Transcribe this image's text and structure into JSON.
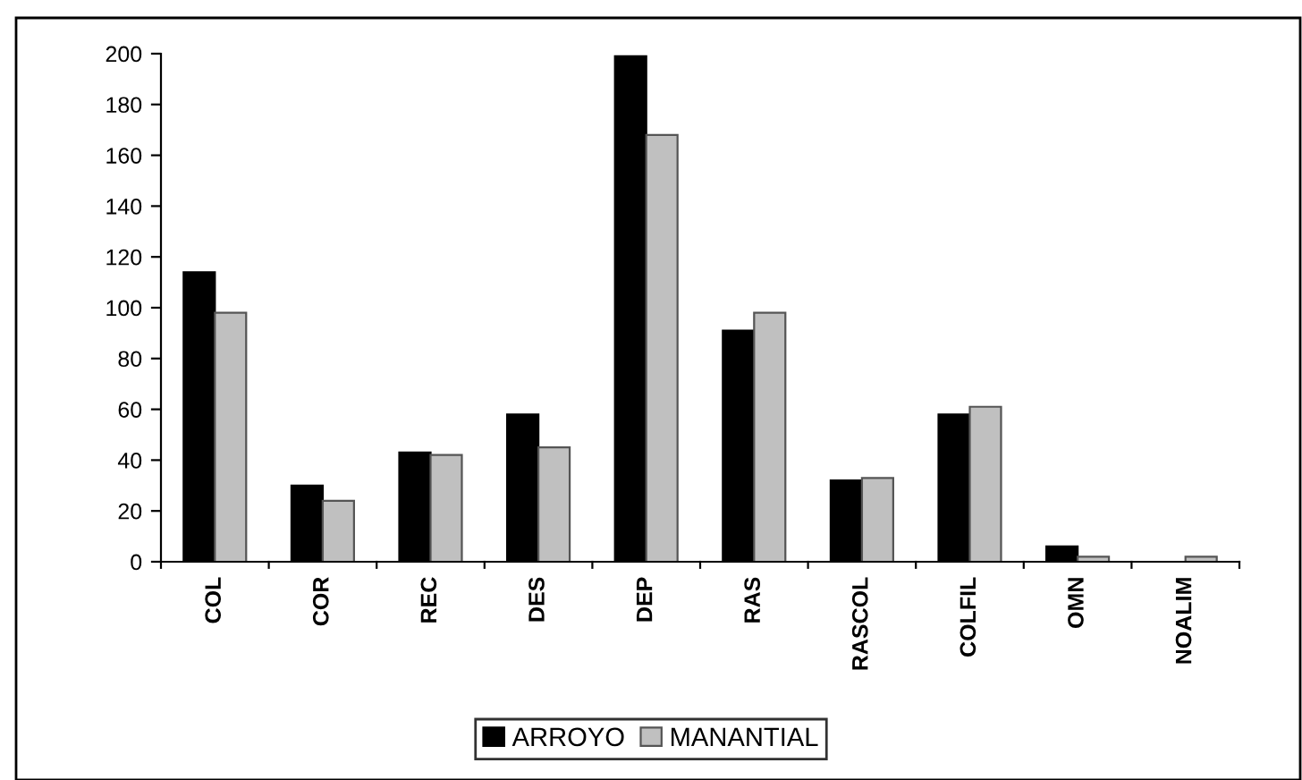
{
  "chart_data": {
    "type": "bar",
    "categories": [
      "COL",
      "COR",
      "REC",
      "DES",
      "DEP",
      "RAS",
      "RASCOL",
      "COLFIL",
      "OMN",
      "NOALIM"
    ],
    "series": [
      {
        "name": "ARROYO",
        "color": "#000000",
        "values": [
          114,
          30,
          43,
          58,
          199,
          91,
          32,
          58,
          6,
          0
        ]
      },
      {
        "name": "MANANTIAL",
        "color": "#c0c0c0",
        "values": [
          98,
          24,
          42,
          45,
          168,
          98,
          33,
          61,
          2,
          2
        ]
      }
    ],
    "ylim": [
      0,
      200
    ],
    "yticks": [
      0,
      20,
      40,
      60,
      80,
      100,
      120,
      140,
      160,
      180,
      200
    ],
    "grid": false,
    "legend": "bottom"
  }
}
